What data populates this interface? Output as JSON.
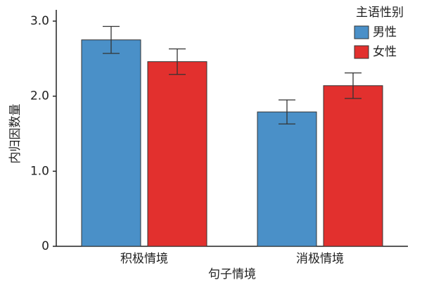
{
  "chart_data": {
    "type": "bar",
    "categories": [
      "积极情境",
      "消极情境"
    ],
    "series": [
      {
        "name": "男性",
        "color": "#4a90c8",
        "values": [
          2.75,
          1.79
        ],
        "errors": [
          0.18,
          0.16
        ]
      },
      {
        "name": "女性",
        "color": "#e2302e",
        "values": [
          2.46,
          2.14
        ],
        "errors": [
          0.17,
          0.17
        ]
      }
    ],
    "x_label": "句子情境",
    "y_label": "内归因数量",
    "legend_title": "主语性别",
    "ylim": [
      0,
      3.0
    ],
    "yticks": [
      0,
      {
        "value": 1,
        "label": "1.0"
      },
      {
        "value": 2,
        "label": "2.0"
      },
      {
        "value": 3,
        "label": "3.0"
      }
    ],
    "legend": "upper right"
  }
}
